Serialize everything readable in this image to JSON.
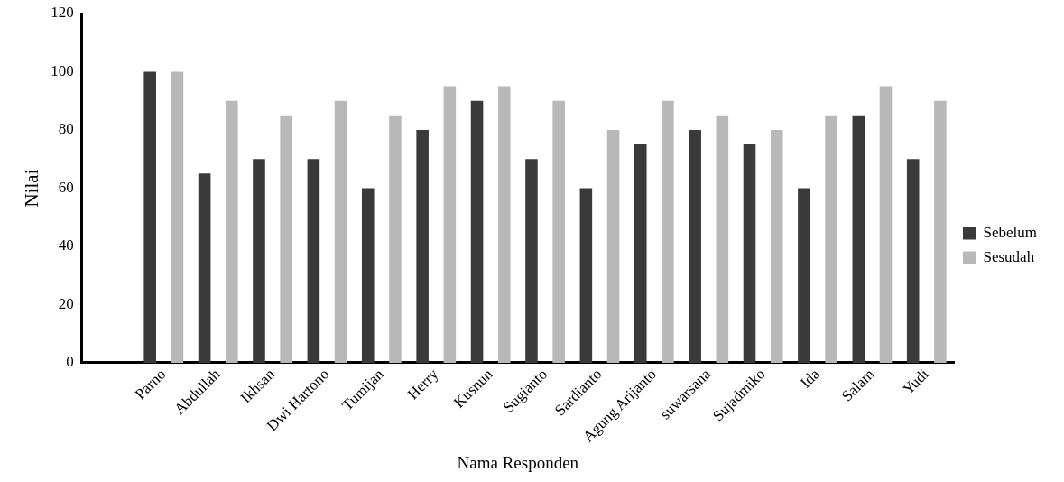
{
  "chart_data": {
    "type": "bar",
    "xlabel": "Nama Responden",
    "ylabel": "Nilai",
    "categories": [
      null,
      "Parno",
      "Abdullah",
      "Ikhsan",
      "Dwi Hartono",
      "Tumijan",
      "Herry",
      "Kusnun",
      "Sugianto",
      "Sardianto",
      "Agung Arijanto",
      "suwarsana",
      "Sujadmiko",
      "Ida",
      "Salam",
      "Yudi"
    ],
    "series": [
      {
        "name": "Sebelum",
        "color": "#3a3a3a",
        "values": [
          null,
          100,
          65,
          70,
          70,
          60,
          80,
          90,
          70,
          60,
          75,
          80,
          75,
          60,
          85,
          70
        ]
      },
      {
        "name": "Sesudah",
        "color": "#b8b8b8",
        "values": [
          null,
          100,
          90,
          85,
          90,
          85,
          95,
          95,
          90,
          80,
          90,
          85,
          80,
          85,
          95,
          90
        ]
      }
    ],
    "ylim": [
      0,
      120
    ],
    "yticks": [
      0,
      20,
      40,
      60,
      80,
      100,
      120
    ],
    "grid": false,
    "legend": "right"
  }
}
